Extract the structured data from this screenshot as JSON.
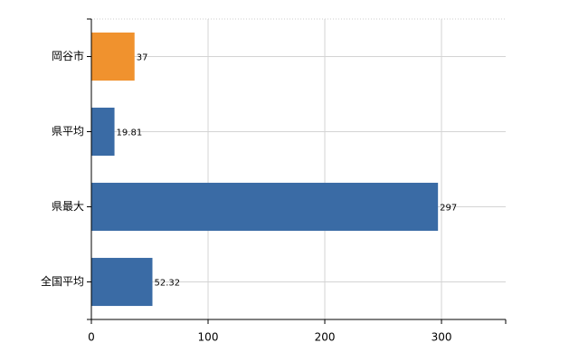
{
  "chart_data": {
    "type": "bar",
    "orientation": "horizontal",
    "categories": [
      "岡谷市",
      "県平均",
      "県最大",
      "全国平均"
    ],
    "values": [
      37,
      19.81,
      297,
      52.32
    ],
    "colors": [
      "#f0922e",
      "#3a6ba5",
      "#3a6ba5",
      "#3a6ba5"
    ],
    "xlim": [
      0,
      355
    ],
    "xticks": [
      0,
      100,
      200,
      300
    ],
    "grid": true
  }
}
